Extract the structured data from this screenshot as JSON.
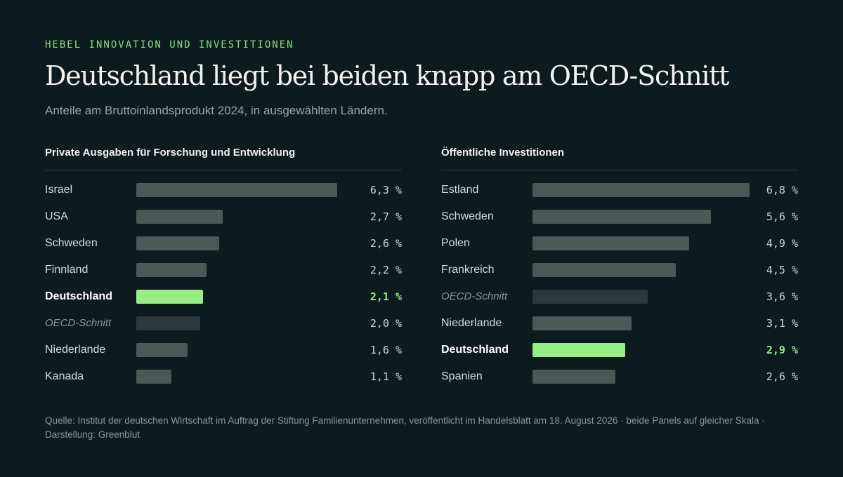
{
  "kicker": "HEBEL INNOVATION UND INVESTITIONEN",
  "title": "Deutschland liegt bei beiden knapp am OECD-Schnitt",
  "subtitle": "Anteile am Bruttoinlandsprodukt 2024, in ausgewählten Ländern.",
  "source": "Quelle: Institut der deutschen Wirtschaft im Auftrag der Stiftung Familienunternehmen, veröffentlicht im Handelsblatt am 18. August 2026 · beide Panels auf gleicher Skala · Darstellung: Greenblut",
  "colors": {
    "bar": "#4b5956",
    "highlight": "#95ee80",
    "average": "#2a3a3a",
    "background": "#0c1c1e"
  },
  "chart_data": [
    {
      "type": "bar",
      "orientation": "horizontal",
      "title": "Private Ausgaben für Forschung und Entwicklung",
      "categories": [
        "Israel",
        "USA",
        "Schweden",
        "Finnland",
        "Deutschland",
        "OECD-Schnitt",
        "Niederlande",
        "Kanada"
      ],
      "values": [
        6.3,
        2.7,
        2.6,
        2.2,
        2.1,
        2.0,
        1.6,
        1.1
      ],
      "value_labels": [
        "6,3 %",
        "2,7 %",
        "2,6 %",
        "2,2 %",
        "2,1 %",
        "2,0 %",
        "1,6 %",
        "1,1 %"
      ],
      "highlight": "Deutschland",
      "average": "OECD-Schnitt",
      "xlim": [
        0,
        7.0
      ]
    },
    {
      "type": "bar",
      "orientation": "horizontal",
      "title": "Öffentliche Investitionen",
      "categories": [
        "Estland",
        "Schweden",
        "Polen",
        "Frankreich",
        "OECD-Schnitt",
        "Niederlande",
        "Deutschland",
        "Spanien"
      ],
      "values": [
        6.8,
        5.6,
        4.9,
        4.5,
        3.6,
        3.1,
        2.9,
        2.6
      ],
      "value_labels": [
        "6,8 %",
        "5,6 %",
        "4,9 %",
        "4,5 %",
        "3,6 %",
        "3,1 %",
        "2,9 %",
        "2,6 %"
      ],
      "highlight": "Deutschland",
      "average": "OECD-Schnitt",
      "xlim": [
        0,
        7.0
      ]
    }
  ]
}
